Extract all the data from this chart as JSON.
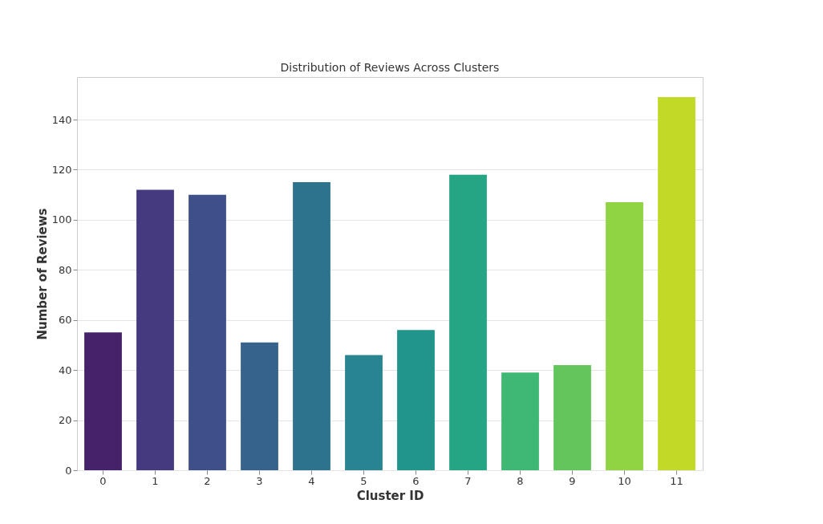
{
  "chart_data": {
    "type": "bar",
    "title": "Distribution of Reviews Across Clusters",
    "xlabel": "Cluster ID",
    "ylabel": "Number of Reviews",
    "categories": [
      "0",
      "1",
      "2",
      "3",
      "4",
      "5",
      "6",
      "7",
      "8",
      "9",
      "10",
      "11"
    ],
    "values": [
      55,
      112,
      110,
      51,
      115,
      46,
      56,
      118,
      39,
      42,
      107,
      149
    ],
    "colors": [
      "#46226a",
      "#453a80",
      "#3e4f89",
      "#35638c",
      "#2e738e",
      "#288490",
      "#21958c",
      "#26a584",
      "#3fb873",
      "#63c65c",
      "#90d343",
      "#c2d926"
    ],
    "ylim": [
      0,
      157
    ],
    "yticks": [
      0,
      20,
      40,
      60,
      80,
      100,
      120,
      140
    ],
    "grid": "y",
    "legend": false
  }
}
